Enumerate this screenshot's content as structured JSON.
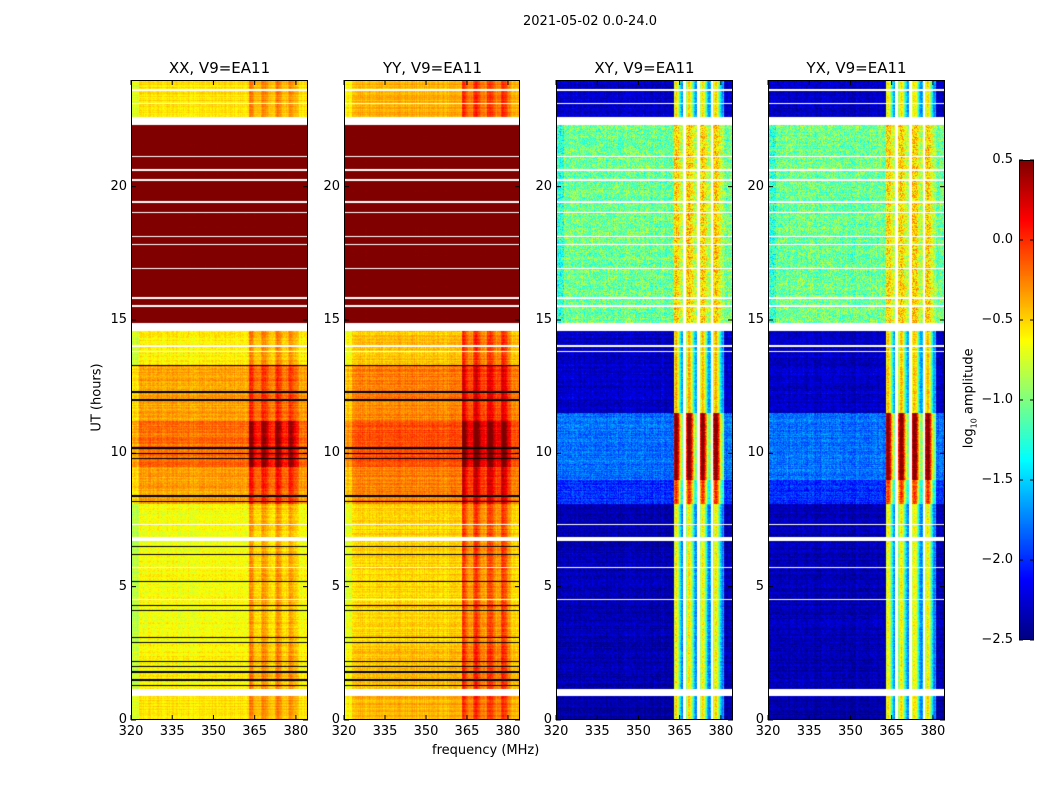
{
  "chart_data": {
    "type": "heatmap",
    "title": "2021-05-02 0.0-24.0",
    "xlabel": "frequency (MHz)",
    "ylabel": "UT (hours)",
    "xlim": [
      320,
      384.4
    ],
    "ylim": [
      0,
      24
    ],
    "xticks": [
      "320",
      "335",
      "350",
      "365",
      "380"
    ],
    "yticks": [
      "0",
      "5",
      "10",
      "15",
      "20"
    ],
    "colorbar": {
      "label_prefix": "log",
      "label_sub": "10",
      "label_suffix": " amplitude",
      "range": [
        -2.5,
        0.5
      ],
      "ticks": [
        "0.5",
        "0.0",
        "−0.5",
        "−1.0",
        "−1.5",
        "−2.0",
        "−2.5"
      ],
      "colormap": "jet"
    },
    "rfi_band_mhz": [
      363,
      381
    ],
    "channel_gaps_mhz": [
      366.8,
      371.8,
      376.8
    ],
    "flagged_times_hours": [
      [
        0.9,
        1.15
      ],
      [
        6.7,
        6.85
      ],
      [
        14.6,
        14.9
      ],
      [
        22.3,
        22.6
      ],
      [
        23.1,
        23.15
      ],
      [
        23.6,
        23.65
      ],
      [
        15.5,
        15.55
      ],
      [
        15.8,
        15.85
      ],
      [
        16.9,
        16.95
      ],
      [
        17.8,
        17.85
      ],
      [
        18.1,
        18.15
      ],
      [
        19.0,
        19.05
      ],
      [
        19.4,
        19.45
      ],
      [
        20.2,
        20.3
      ],
      [
        20.6,
        20.65
      ],
      [
        21.1,
        21.15
      ],
      [
        7.3,
        7.35
      ],
      [
        4.5,
        4.55
      ],
      [
        5.7,
        5.75
      ],
      [
        14.0,
        14.05
      ],
      [
        13.8,
        13.85
      ]
    ],
    "black_lines_hours": [
      1.3,
      1.5,
      1.8,
      2.0,
      2.2,
      2.9,
      3.1,
      4.1,
      4.3,
      5.2,
      6.2,
      6.5,
      8.2,
      8.4,
      9.8,
      10.0,
      10.2,
      12.0,
      12.3,
      13.3
    ],
    "panels": [
      {
        "title": "XX, V9=EA11",
        "segments": [
          [
            0,
            0.9,
            -0.55,
            0.25,
            0.1
          ],
          [
            1.15,
            2.8,
            -0.6,
            0.3,
            0.15
          ],
          [
            2.8,
            8.1,
            -0.65,
            0.28,
            0.15
          ],
          [
            8.1,
            9.5,
            -0.35,
            0.35,
            0.15
          ],
          [
            9.5,
            11.2,
            -0.2,
            0.55,
            0.15
          ],
          [
            11.2,
            13.3,
            -0.35,
            0.3,
            0.15
          ],
          [
            13.3,
            14.6,
            -0.6,
            0.28,
            0.15
          ],
          [
            14.9,
            22.3,
            0.6,
            0,
            0
          ],
          [
            22.6,
            24,
            -0.55,
            0.25,
            0.1
          ]
        ],
        "gaps_flagged": false,
        "black_lines": true
      },
      {
        "title": "YY, V9=EA11",
        "segments": [
          [
            0,
            0.9,
            -0.4,
            0.35,
            0.1
          ],
          [
            1.15,
            2.8,
            -0.45,
            0.4,
            0.15
          ],
          [
            2.8,
            8.1,
            -0.5,
            0.4,
            0.15
          ],
          [
            8.1,
            9.5,
            -0.25,
            0.45,
            0.15
          ],
          [
            9.5,
            11.2,
            -0.1,
            0.6,
            0.15
          ],
          [
            11.2,
            13.3,
            -0.25,
            0.4,
            0.15
          ],
          [
            13.3,
            14.6,
            -0.45,
            0.4,
            0.15
          ],
          [
            14.9,
            22.3,
            0.6,
            0,
            0
          ],
          [
            22.6,
            24,
            -0.4,
            0.35,
            0.1
          ]
        ],
        "gaps_flagged": false,
        "black_lines": true
      },
      {
        "title": "XY, V9=EA11",
        "segments": [
          [
            0,
            0.9,
            -2.4,
            1.6,
            0.2
          ],
          [
            1.15,
            8.1,
            -2.35,
            1.5,
            0.25
          ],
          [
            8.1,
            9.0,
            -2.0,
            1.7,
            0.3
          ],
          [
            9.0,
            11.5,
            -1.8,
            2.0,
            0.3
          ],
          [
            11.5,
            14.6,
            -2.3,
            1.6,
            0.25
          ],
          [
            14.9,
            22.3,
            -1.05,
            0.5,
            0.6
          ],
          [
            22.6,
            24,
            -2.3,
            1.5,
            0.25
          ]
        ],
        "gaps_flagged": true,
        "black_lines": false
      },
      {
        "title": "YX, V9=EA11",
        "segments": [
          [
            0,
            0.9,
            -2.4,
            1.6,
            0.2
          ],
          [
            1.15,
            8.1,
            -2.35,
            1.5,
            0.25
          ],
          [
            8.1,
            9.0,
            -2.0,
            1.7,
            0.3
          ],
          [
            9.0,
            11.5,
            -1.8,
            2.0,
            0.3
          ],
          [
            11.5,
            14.6,
            -2.3,
            1.6,
            0.25
          ],
          [
            14.9,
            22.3,
            -1.05,
            0.5,
            0.6
          ],
          [
            22.6,
            24,
            -2.3,
            1.5,
            0.25
          ]
        ],
        "gaps_flagged": true,
        "black_lines": false
      }
    ]
  }
}
